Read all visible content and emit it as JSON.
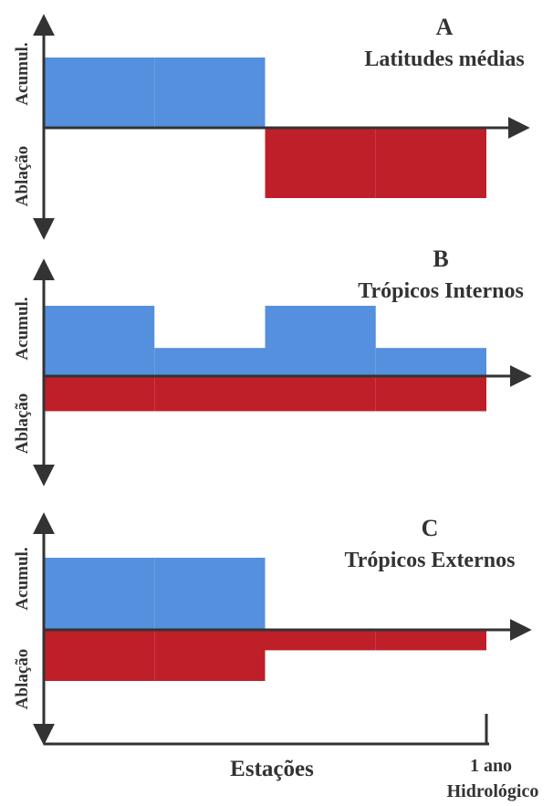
{
  "colors": {
    "accumulation": "#5590de",
    "ablation": "#bf1f29",
    "axis": "#333333"
  },
  "axis_labels": {
    "accumulation": "Acumul.",
    "ablation": "Ablação"
  },
  "panels": [
    {
      "letter": "A",
      "title": "Latitudes médias",
      "accumulation_levels": [
        1,
        1,
        0,
        0
      ],
      "ablation_levels": [
        0,
        0,
        1,
        1
      ]
    },
    {
      "letter": "B",
      "title": "Trópicos Internos",
      "accumulation_levels": [
        1,
        0.4,
        1,
        0.4
      ],
      "ablation_levels": [
        0.5,
        0.5,
        0.5,
        0.5
      ]
    },
    {
      "letter": "C",
      "title": "Trópicos Externos",
      "accumulation_levels": [
        1,
        1,
        0,
        0
      ],
      "ablation_levels": [
        1,
        1,
        0.4,
        0.4
      ]
    }
  ],
  "x_axis": {
    "label": "Estações",
    "end_label_line1": "1 ano",
    "end_label_line2": "Hidrológico"
  }
}
